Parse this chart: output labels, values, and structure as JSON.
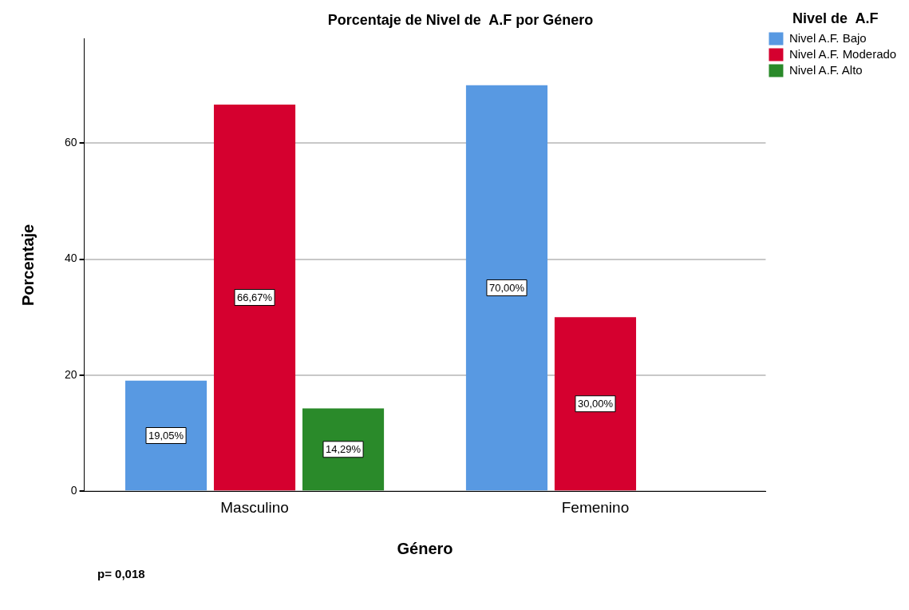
{
  "chart_data": {
    "type": "bar",
    "title": "Porcentaje de Nivel de  A.F por Género",
    "xlabel": "Género",
    "ylabel": "Porcentaje",
    "legend_title": "Nivel de  A.F",
    "categories": [
      "Masculino",
      "Femenino"
    ],
    "series": [
      {
        "name": "Nivel A.F. Bajo",
        "color": "#5899e2",
        "values": [
          19.05,
          70.0
        ],
        "value_labels": [
          "19,05%",
          "70,00%"
        ]
      },
      {
        "name": "Nivel A.F. Moderado",
        "color": "#d5002f",
        "values": [
          66.67,
          30.0
        ],
        "value_labels": [
          "66,67%",
          "30,00%"
        ]
      },
      {
        "name": "Nivel A.F. Alto",
        "color": "#2a8a2a",
        "values": [
          14.29,
          null
        ],
        "value_labels": [
          "14,29%",
          null
        ]
      }
    ],
    "ylim": [
      0,
      78
    ],
    "yticks": [
      0,
      20,
      40,
      60
    ],
    "grid": "y",
    "legend": "top right",
    "annotations": [
      "p= 0,018"
    ]
  }
}
